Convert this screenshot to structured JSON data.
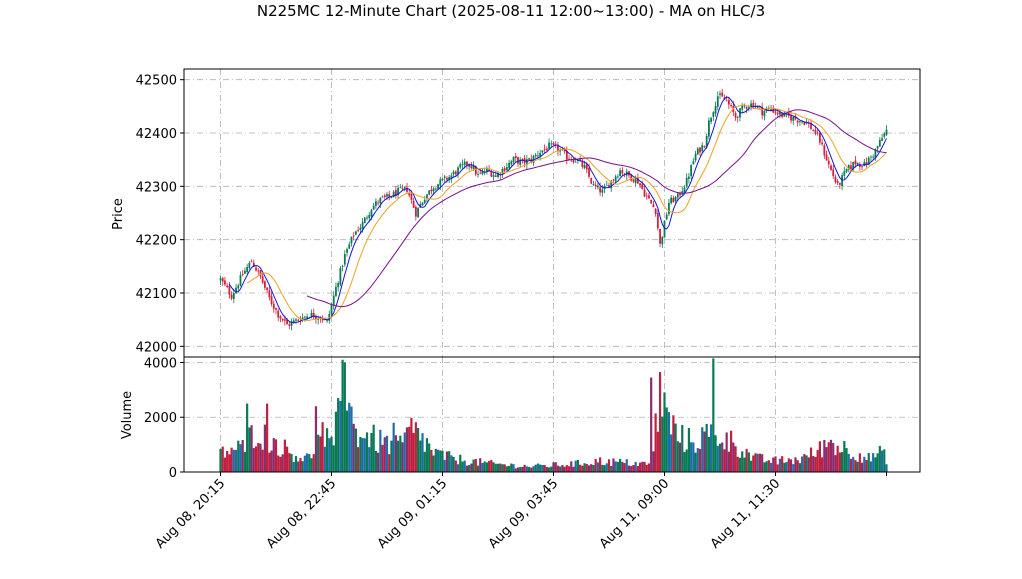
{
  "chart_data": {
    "type": "candlestick",
    "title": "N225MC 12-Minute Chart (2025-08-11 12:00~13:00) - MA on HLC/3",
    "xlabel": "",
    "price_panel": {
      "ylabel": "Price",
      "ylim": [
        41980,
        42520
      ],
      "yticks": [
        42000,
        42100,
        42200,
        42300,
        42400,
        42500
      ],
      "ytick_labels": [
        "42000",
        "42100",
        "42200",
        "42300",
        "42400",
        "42500"
      ],
      "grid": true
    },
    "volume_panel": {
      "ylabel": "Volume",
      "ylim": [
        0,
        4200
      ],
      "yticks": [
        0,
        2000,
        4000
      ],
      "ytick_labels": [
        "0",
        "2000",
        "4000"
      ],
      "grid": true
    },
    "xticks": [
      {
        "index": 0,
        "label": "Aug 08, 20:15"
      },
      {
        "index": 50,
        "label": "Aug 08, 22:45"
      },
      {
        "index": 100,
        "label": "Aug 09, 01:15"
      },
      {
        "index": 150,
        "label": "Aug 09, 03:45"
      },
      {
        "index": 200,
        "label": "Aug 11, 09:00"
      },
      {
        "index": 250,
        "label": "Aug 11, 11:30"
      }
    ],
    "bar_count": 301,
    "anchors": [
      [
        0,
        42125
      ],
      [
        5,
        42095
      ],
      [
        10,
        42135
      ],
      [
        14,
        42160
      ],
      [
        18,
        42130
      ],
      [
        22,
        42090
      ],
      [
        26,
        42060
      ],
      [
        30,
        42040
      ],
      [
        35,
        42050
      ],
      [
        40,
        42060
      ],
      [
        45,
        42055
      ],
      [
        48,
        42045
      ],
      [
        52,
        42110
      ],
      [
        56,
        42170
      ],
      [
        60,
        42210
      ],
      [
        64,
        42230
      ],
      [
        68,
        42260
      ],
      [
        72,
        42275
      ],
      [
        76,
        42280
      ],
      [
        80,
        42290
      ],
      [
        84,
        42295
      ],
      [
        88,
        42250
      ],
      [
        92,
        42280
      ],
      [
        96,
        42300
      ],
      [
        100,
        42310
      ],
      [
        104,
        42320
      ],
      [
        108,
        42335
      ],
      [
        112,
        42345
      ],
      [
        116,
        42320
      ],
      [
        120,
        42330
      ],
      [
        124,
        42320
      ],
      [
        128,
        42335
      ],
      [
        132,
        42350
      ],
      [
        136,
        42345
      ],
      [
        140,
        42350
      ],
      [
        144,
        42365
      ],
      [
        148,
        42375
      ],
      [
        152,
        42370
      ],
      [
        156,
        42355
      ],
      [
        160,
        42350
      ],
      [
        164,
        42335
      ],
      [
        168,
        42300
      ],
      [
        172,
        42290
      ],
      [
        176,
        42310
      ],
      [
        180,
        42330
      ],
      [
        184,
        42320
      ],
      [
        188,
        42310
      ],
      [
        192,
        42280
      ],
      [
        196,
        42255
      ],
      [
        198,
        42190
      ],
      [
        202,
        42270
      ],
      [
        206,
        42280
      ],
      [
        210,
        42310
      ],
      [
        214,
        42360
      ],
      [
        218,
        42380
      ],
      [
        220,
        42420
      ],
      [
        224,
        42470
      ],
      [
        228,
        42460
      ],
      [
        232,
        42430
      ],
      [
        236,
        42450
      ],
      [
        240,
        42455
      ],
      [
        244,
        42440
      ],
      [
        248,
        42445
      ],
      [
        252,
        42435
      ],
      [
        256,
        42430
      ],
      [
        260,
        42425
      ],
      [
        264,
        42420
      ],
      [
        268,
        42400
      ],
      [
        270,
        42385
      ],
      [
        274,
        42340
      ],
      [
        278,
        42300
      ],
      [
        282,
        42330
      ],
      [
        286,
        42345
      ],
      [
        290,
        42340
      ],
      [
        294,
        42360
      ],
      [
        298,
        42390
      ],
      [
        300,
        42405
      ]
    ],
    "volume_anchors": [
      [
        0,
        700
      ],
      [
        10,
        900
      ],
      [
        16,
        1600
      ],
      [
        22,
        1200
      ],
      [
        28,
        900
      ],
      [
        34,
        600
      ],
      [
        40,
        500
      ],
      [
        46,
        1400
      ],
      [
        50,
        900
      ],
      [
        54,
        2200
      ],
      [
        56,
        3800
      ],
      [
        60,
        1500
      ],
      [
        66,
        1300
      ],
      [
        72,
        1100
      ],
      [
        80,
        900
      ],
      [
        86,
        1500
      ],
      [
        90,
        1300
      ],
      [
        96,
        700
      ],
      [
        104,
        500
      ],
      [
        112,
        400
      ],
      [
        120,
        320
      ],
      [
        130,
        250
      ],
      [
        140,
        200
      ],
      [
        150,
        250
      ],
      [
        160,
        300
      ],
      [
        170,
        400
      ],
      [
        180,
        350
      ],
      [
        190,
        300
      ],
      [
        194,
        250
      ],
      [
        196,
        1600
      ],
      [
        198,
        2600
      ],
      [
        202,
        1900
      ],
      [
        206,
        1300
      ],
      [
        212,
        1100
      ],
      [
        218,
        1300
      ],
      [
        222,
        1400
      ],
      [
        228,
        1200
      ],
      [
        234,
        900
      ],
      [
        240,
        500
      ],
      [
        250,
        400
      ],
      [
        260,
        450
      ],
      [
        268,
        700
      ],
      [
        274,
        1100
      ],
      [
        280,
        900
      ],
      [
        286,
        700
      ],
      [
        292,
        500
      ],
      [
        298,
        700
      ],
      [
        300,
        500
      ]
    ],
    "volume_spikes": [
      [
        55,
        4100
      ],
      [
        56,
        4000
      ],
      [
        194,
        3450
      ],
      [
        198,
        3650
      ],
      [
        222,
        4150
      ],
      [
        12,
        2500
      ],
      [
        21,
        2500
      ],
      [
        43,
        2400
      ],
      [
        53,
        2700
      ],
      [
        78,
        1800
      ]
    ],
    "ma_windows": [
      5,
      13,
      40
    ],
    "colors": {
      "up": "#0a7a55",
      "down": "#d21f3c",
      "ma_fast": "#1414d2",
      "ma_mid": "#f0a020",
      "ma_slow": "#7a0f8c",
      "vol_up": "#0a7a55",
      "vol_down": "#c02040",
      "vol_alt": "#1f6eaa",
      "vol_alt2": "#8a2c6e",
      "grid": "#b0b0b0"
    }
  }
}
